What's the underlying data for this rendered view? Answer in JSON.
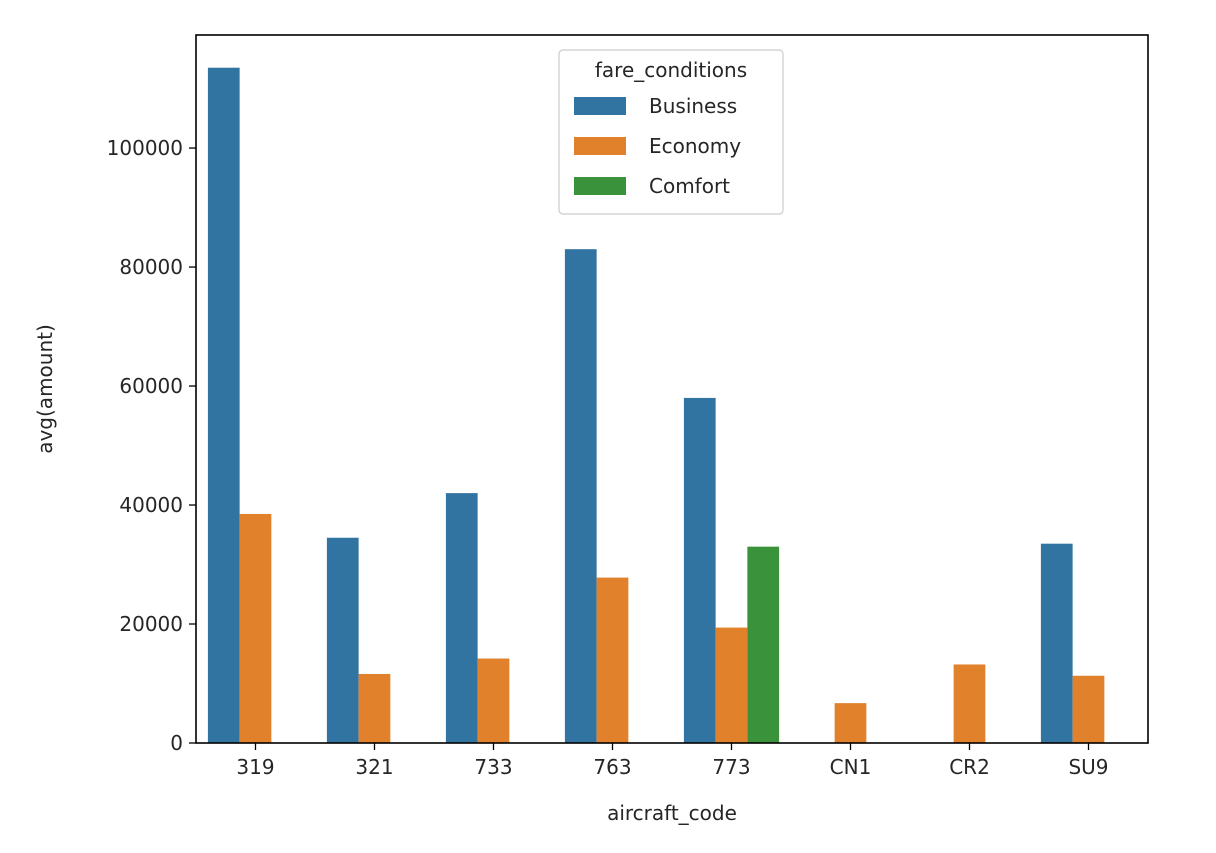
{
  "chart_data": {
    "type": "bar",
    "title": "",
    "xlabel": "aircraft_code",
    "ylabel": "avg(amount)",
    "categories": [
      "319",
      "321",
      "733",
      "763",
      "773",
      "CN1",
      "CR2",
      "SU9"
    ],
    "series": [
      {
        "name": "Business",
        "color": "#3274a1",
        "values": [
          113500,
          34500,
          42000,
          83000,
          58000,
          null,
          null,
          33500
        ]
      },
      {
        "name": "Economy",
        "color": "#e1812c",
        "values": [
          38500,
          11600,
          14200,
          27800,
          19400,
          6700,
          13200,
          11300
        ]
      },
      {
        "name": "Comfort",
        "color": "#3a923a",
        "values": [
          null,
          null,
          null,
          null,
          33000,
          null,
          null,
          null
        ]
      }
    ],
    "ylim": [
      0,
      119000
    ],
    "yticks": [
      0,
      20000,
      40000,
      60000,
      80000,
      100000
    ],
    "ytick_labels": [
      "0",
      "20000",
      "40000",
      "60000",
      "80000",
      "100000"
    ],
    "grid": false,
    "legend": {
      "title": "fare_conditions",
      "placement": "upper center",
      "entries": [
        "Business",
        "Economy",
        "Comfort"
      ]
    }
  }
}
